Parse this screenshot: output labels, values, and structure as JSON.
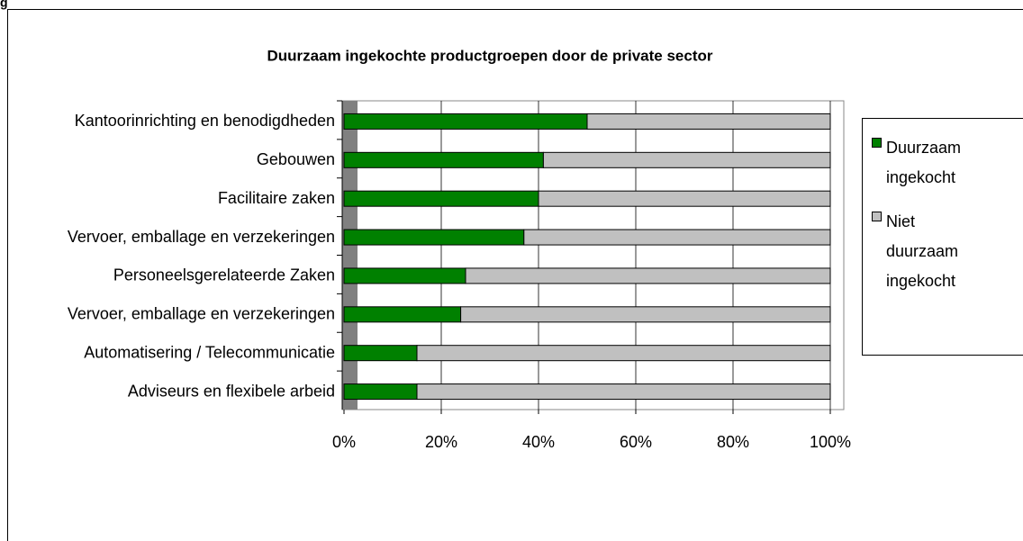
{
  "caption": "g",
  "chart_data": {
    "type": "stacked-bar-horizontal",
    "title": "Duurzaam ingekochte productgroepen door de private sector",
    "categories": [
      "Kantoorinrichting en benodigdheden",
      "Gebouwen",
      "Facilitaire zaken",
      "Vervoer, emballage en verzekeringen",
      "Personeelsgerelateerde Zaken",
      "Vervoer, emballage en verzekeringen",
      "Automatisering / Telecommunicatie",
      "Adviseurs en flexibele arbeid"
    ],
    "series": [
      {
        "name": "Duurzaam ingekocht",
        "color": "#008000",
        "values": [
          50,
          41,
          40,
          37,
          25,
          24,
          15,
          15
        ]
      },
      {
        "name": "Niet duurzaam ingekocht",
        "color": "#c0c0c0",
        "values": [
          50,
          59,
          60,
          63,
          75,
          76,
          85,
          85
        ]
      }
    ],
    "xlim": [
      0,
      100
    ],
    "xticks": [
      {
        "value": 0,
        "label": "0%"
      },
      {
        "value": 20,
        "label": "20%"
      },
      {
        "value": 40,
        "label": "40%"
      },
      {
        "value": 60,
        "label": "60%"
      },
      {
        "value": 80,
        "label": "80%"
      },
      {
        "value": 100,
        "label": "100%"
      }
    ],
    "grid": true
  }
}
